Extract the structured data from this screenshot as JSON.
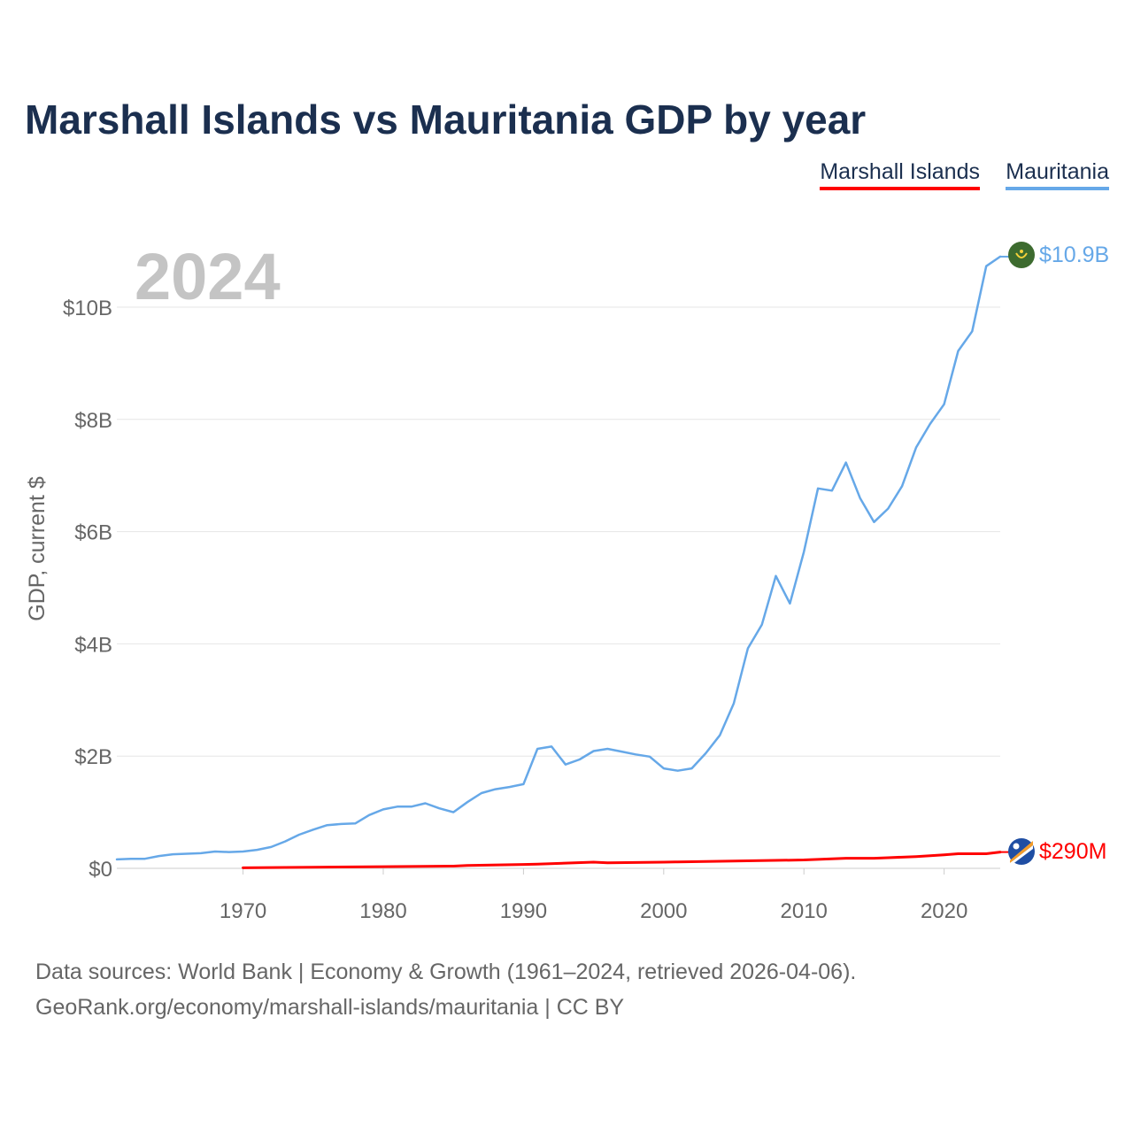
{
  "chart_data": {
    "type": "line",
    "title": "Marshall Islands vs Mauritania GDP by year",
    "ylabel": "GDP, current $",
    "xlabel": "",
    "year_watermark": "2024",
    "xlim": [
      1961,
      2024
    ],
    "ylim": [
      0,
      11000000000
    ],
    "y_ticks": [
      {
        "value": 0,
        "label": "$0"
      },
      {
        "value": 2000000000,
        "label": "$2B"
      },
      {
        "value": 4000000000,
        "label": "$4B"
      },
      {
        "value": 6000000000,
        "label": "$6B"
      },
      {
        "value": 8000000000,
        "label": "$8B"
      },
      {
        "value": 10000000000,
        "label": "$10B"
      }
    ],
    "x_ticks": [
      {
        "value": 1970,
        "label": "1970"
      },
      {
        "value": 1980,
        "label": "1980"
      },
      {
        "value": 1990,
        "label": "1990"
      },
      {
        "value": 2000,
        "label": "2000"
      },
      {
        "value": 2010,
        "label": "2010"
      },
      {
        "value": 2020,
        "label": "2020"
      }
    ],
    "series": [
      {
        "name": "Marshall Islands",
        "color": "#ff0000",
        "end_label": "$290M",
        "points": [
          [
            1970,
            0.01
          ],
          [
            1975,
            0.02
          ],
          [
            1980,
            0.03
          ],
          [
            1985,
            0.04
          ],
          [
            1986,
            0.05
          ],
          [
            1990,
            0.07
          ],
          [
            1991,
            0.075
          ],
          [
            1995,
            0.11
          ],
          [
            1996,
            0.1
          ],
          [
            2000,
            0.11
          ],
          [
            2001,
            0.115
          ],
          [
            2005,
            0.13
          ],
          [
            2010,
            0.15
          ],
          [
            2013,
            0.18
          ],
          [
            2015,
            0.18
          ],
          [
            2016,
            0.19
          ],
          [
            2018,
            0.21
          ],
          [
            2020,
            0.24
          ],
          [
            2021,
            0.26
          ],
          [
            2023,
            0.26
          ],
          [
            2024,
            0.29
          ]
        ]
      },
      {
        "name": "Mauritania",
        "color": "#66a8e8",
        "end_label": "$10.9B",
        "points": [
          [
            1961,
            0.16
          ],
          [
            1962,
            0.17
          ],
          [
            1963,
            0.17
          ],
          [
            1964,
            0.22
          ],
          [
            1965,
            0.25
          ],
          [
            1966,
            0.26
          ],
          [
            1967,
            0.27
          ],
          [
            1968,
            0.3
          ],
          [
            1969,
            0.29
          ],
          [
            1970,
            0.3
          ],
          [
            1971,
            0.33
          ],
          [
            1972,
            0.38
          ],
          [
            1973,
            0.48
          ],
          [
            1974,
            0.6
          ],
          [
            1975,
            0.69
          ],
          [
            1976,
            0.77
          ],
          [
            1977,
            0.79
          ],
          [
            1978,
            0.8
          ],
          [
            1979,
            0.95
          ],
          [
            1980,
            1.05
          ],
          [
            1981,
            1.1
          ],
          [
            1982,
            1.1
          ],
          [
            1983,
            1.16
          ],
          [
            1984,
            1.07
          ],
          [
            1985,
            1.0
          ],
          [
            1986,
            1.18
          ],
          [
            1987,
            1.34
          ],
          [
            1988,
            1.41
          ],
          [
            1989,
            1.45
          ],
          [
            1990,
            1.5
          ],
          [
            1991,
            2.13
          ],
          [
            1992,
            2.17
          ],
          [
            1993,
            1.85
          ],
          [
            1994,
            1.94
          ],
          [
            1995,
            2.09
          ],
          [
            1996,
            2.13
          ],
          [
            1997,
            2.08
          ],
          [
            1998,
            2.03
          ],
          [
            1999,
            1.99
          ],
          [
            2000,
            1.78
          ],
          [
            2001,
            1.74
          ],
          [
            2002,
            1.78
          ],
          [
            2003,
            2.05
          ],
          [
            2004,
            2.37
          ],
          [
            2005,
            2.94
          ],
          [
            2006,
            3.92
          ],
          [
            2007,
            4.34
          ],
          [
            2008,
            5.21
          ],
          [
            2009,
            4.72
          ],
          [
            2010,
            5.64
          ],
          [
            2011,
            6.77
          ],
          [
            2012,
            6.73
          ],
          [
            2013,
            7.23
          ],
          [
            2014,
            6.6
          ],
          [
            2015,
            6.17
          ],
          [
            2016,
            6.41
          ],
          [
            2017,
            6.81
          ],
          [
            2018,
            7.5
          ],
          [
            2019,
            7.92
          ],
          [
            2020,
            8.27
          ],
          [
            2021,
            9.22
          ],
          [
            2022,
            9.57
          ],
          [
            2023,
            10.73
          ],
          [
            2024,
            10.9
          ]
        ]
      }
    ]
  },
  "source": {
    "line1": "Data sources: World Bank | Economy & Growth (1961–2024, retrieved 2026-04-06).",
    "line2": "GeoRank.org/economy/marshall-islands/mauritania | CC BY"
  }
}
